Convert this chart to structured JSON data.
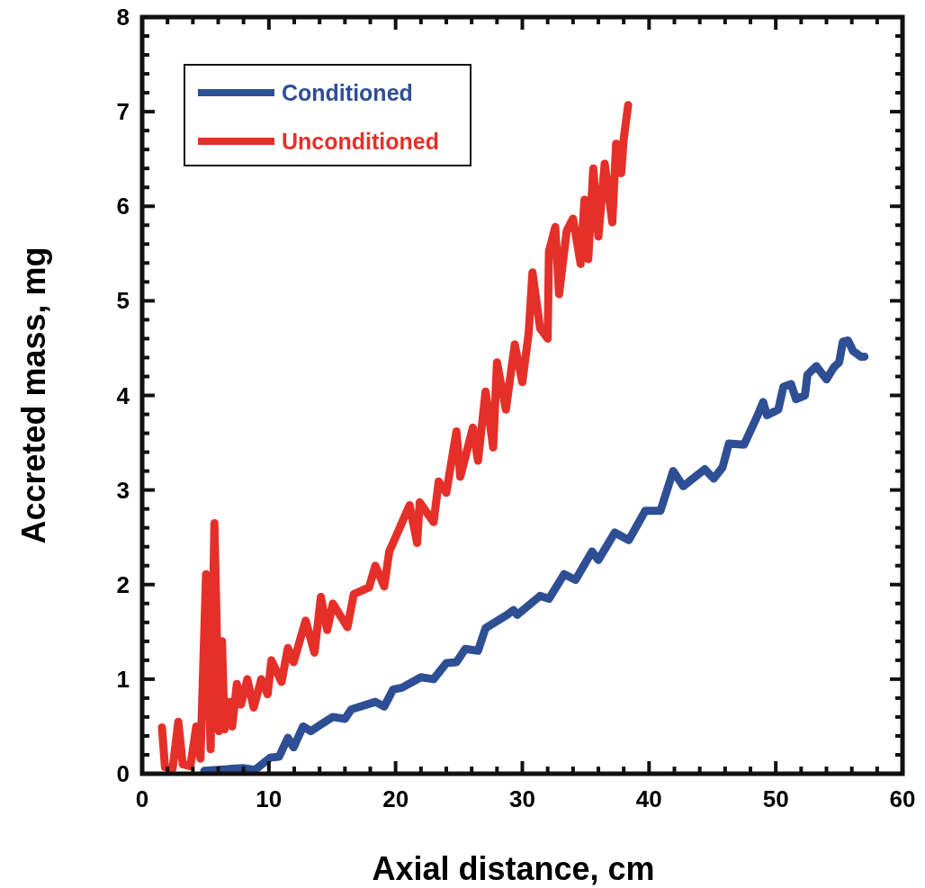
{
  "chart_data": {
    "type": "line",
    "xlabel": "Axial distance, cm",
    "ylabel": "Accreted mass, mg",
    "legend": "top left",
    "grid": false,
    "line_style": "solid",
    "xlim": [
      0,
      60
    ],
    "ylim": [
      0,
      8
    ],
    "xticks": [
      0,
      {
        "value": 2,
        "label": null
      },
      {
        "value": 4,
        "label": null
      },
      {
        "value": 6,
        "label": null
      },
      {
        "value": 8,
        "label": null
      },
      10,
      {
        "value": 12,
        "label": null
      },
      {
        "value": 14,
        "label": null
      },
      {
        "value": 16,
        "label": null
      },
      {
        "value": 18,
        "label": null
      },
      20,
      {
        "value": 22,
        "label": null
      },
      {
        "value": 24,
        "label": null
      },
      {
        "value": 26,
        "label": null
      },
      {
        "value": 28,
        "label": null
      },
      30,
      {
        "value": 32,
        "label": null
      },
      {
        "value": 34,
        "label": null
      },
      {
        "value": 36,
        "label": null
      },
      {
        "value": 38,
        "label": null
      },
      40,
      {
        "value": 42,
        "label": null
      },
      {
        "value": 44,
        "label": null
      },
      {
        "value": 46,
        "label": null
      },
      {
        "value": 48,
        "label": null
      },
      50,
      {
        "value": 52,
        "label": null
      },
      {
        "value": 54,
        "label": null
      },
      {
        "value": 56,
        "label": null
      },
      {
        "value": 58,
        "label": null
      },
      60
    ],
    "yticks": [
      0,
      {
        "value": 0.2,
        "label": null
      },
      {
        "value": 0.4,
        "label": null
      },
      {
        "value": 0.6,
        "label": null
      },
      {
        "value": 0.8,
        "label": null
      },
      1,
      {
        "value": 1.2,
        "label": null
      },
      {
        "value": 1.4,
        "label": null
      },
      {
        "value": 1.6,
        "label": null
      },
      {
        "value": 1.8,
        "label": null
      },
      2,
      {
        "value": 2.2,
        "label": null
      },
      {
        "value": 2.4,
        "label": null
      },
      {
        "value": 2.6,
        "label": null
      },
      {
        "value": 2.8,
        "label": null
      },
      3,
      {
        "value": 3.2,
        "label": null
      },
      {
        "value": 3.4,
        "label": null
      },
      {
        "value": 3.6,
        "label": null
      },
      {
        "value": 3.8,
        "label": null
      },
      4,
      {
        "value": 4.2,
        "label": null
      },
      {
        "value": 4.4,
        "label": null
      },
      {
        "value": 4.6,
        "label": null
      },
      {
        "value": 4.8,
        "label": null
      },
      5,
      {
        "value": 5.2,
        "label": null
      },
      {
        "value": 5.4,
        "label": null
      },
      {
        "value": 5.6,
        "label": null
      },
      {
        "value": 5.8,
        "label": null
      },
      6,
      {
        "value": 6.2,
        "label": null
      },
      {
        "value": 6.4,
        "label": null
      },
      {
        "value": 6.6,
        "label": null
      },
      {
        "value": 6.8,
        "label": null
      },
      7,
      {
        "value": 7.2,
        "label": null
      },
      {
        "value": 7.4,
        "label": null
      },
      {
        "value": 7.6,
        "label": null
      },
      {
        "value": 7.8,
        "label": null
      },
      8
    ],
    "series": [
      {
        "name": "Conditioned",
        "color": "#2e4f94",
        "x": [
          4.9,
          7.95,
          8.9,
          10.1,
          10.8,
          11.5,
          11.95,
          12.7,
          13.3,
          14.1,
          15.05,
          16.0,
          16.5,
          18.4,
          19.1,
          19.8,
          20.5,
          22.0,
          23.0,
          24.0,
          24.8,
          25.5,
          26.5,
          27.1,
          28.8,
          29.3,
          29.6,
          31.4,
          32.1,
          33.3,
          34.2,
          35.5,
          36.0,
          37.3,
          38.4,
          39.7,
          40.9,
          41.9,
          42.7,
          44.4,
          45.1,
          45.8,
          46.3,
          47.5,
          48.6,
          49.0,
          49.3,
          50.2,
          50.6,
          51.2,
          51.6,
          52.3,
          52.5,
          53.2,
          54.0,
          54.6,
          55.0,
          55.3,
          55.7,
          56.1,
          56.7,
          57.0
        ],
        "values": [
          0.03,
          0.06,
          0.04,
          0.17,
          0.18,
          0.38,
          0.28,
          0.5,
          0.45,
          0.52,
          0.6,
          0.58,
          0.68,
          0.76,
          0.71,
          0.89,
          0.91,
          1.02,
          1.0,
          1.17,
          1.18,
          1.32,
          1.3,
          1.54,
          1.68,
          1.73,
          1.68,
          1.88,
          1.85,
          2.11,
          2.05,
          2.35,
          2.26,
          2.55,
          2.47,
          2.78,
          2.78,
          3.2,
          3.04,
          3.22,
          3.12,
          3.24,
          3.49,
          3.48,
          3.8,
          3.93,
          3.79,
          3.85,
          4.09,
          4.12,
          3.96,
          4.0,
          4.22,
          4.31,
          4.17,
          4.3,
          4.35,
          4.57,
          4.58,
          4.47,
          4.41,
          4.41
        ]
      },
      {
        "name": "Unconditioned",
        "color": "#e5302a",
        "x": [
          1.56,
          1.8,
          2.4,
          2.85,
          3.2,
          3.8,
          4.27,
          4.6,
          5.04,
          5.4,
          5.7,
          6.06,
          6.3,
          6.5,
          6.9,
          7.1,
          7.47,
          7.8,
          8.3,
          8.8,
          9.4,
          9.9,
          10.2,
          11.0,
          11.5,
          11.95,
          12.9,
          13.6,
          14.1,
          14.6,
          15.05,
          16.2,
          16.7,
          17.9,
          18.4,
          19.1,
          19.5,
          20.0,
          21.1,
          21.7,
          21.9,
          23.0,
          23.4,
          24.0,
          24.8,
          25.1,
          26.1,
          26.5,
          27.1,
          27.7,
          28.0,
          28.7,
          29.4,
          30.0,
          30.5,
          30.8,
          31.4,
          32.0,
          32.1,
          32.6,
          32.9,
          33.5,
          34.0,
          34.6,
          34.9,
          35.2,
          35.6,
          36.0,
          36.5,
          37.1,
          37.4,
          37.8,
          38.0,
          38.35
        ],
        "values": [
          0.49,
          0.07,
          0.05,
          0.55,
          0.1,
          0.08,
          0.5,
          0.16,
          2.11,
          0.26,
          2.65,
          0.45,
          1.4,
          0.47,
          0.76,
          0.5,
          0.95,
          0.73,
          1.0,
          0.7,
          1.0,
          0.84,
          1.2,
          0.97,
          1.33,
          1.18,
          1.62,
          1.28,
          1.87,
          1.52,
          1.8,
          1.55,
          1.9,
          1.97,
          2.2,
          1.98,
          2.35,
          2.5,
          2.84,
          2.44,
          2.87,
          2.66,
          3.09,
          2.97,
          3.62,
          3.14,
          3.66,
          3.31,
          4.04,
          3.45,
          4.35,
          3.85,
          4.54,
          4.14,
          4.66,
          5.3,
          4.71,
          4.6,
          5.52,
          5.78,
          5.07,
          5.74,
          5.87,
          5.39,
          6.07,
          5.44,
          6.4,
          5.68,
          6.45,
          5.83,
          6.66,
          6.35,
          6.71,
          7.07
        ]
      }
    ]
  }
}
